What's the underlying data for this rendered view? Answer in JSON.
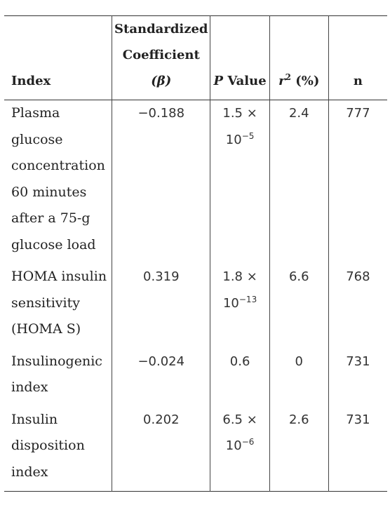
{
  "headers": {
    "index": "Index",
    "coef_line1": "Standardized",
    "coef_line2": "Coefficient",
    "coef_line3": "(β)",
    "pvalue_p": "P",
    "pvalue_rest": " Value",
    "r2_r": "r",
    "r2_sup": "2",
    "r2_rest": " (%)",
    "n": "n"
  },
  "rows": [
    {
      "index_lines": [
        "Plasma",
        "glucose",
        "concentration",
        "60 minutes",
        "after a 75-g",
        "glucose load"
      ],
      "coef": "−0.188",
      "p_base": "1.5 ×",
      "p_exp_base": "10",
      "p_exp": "−5",
      "r2": "2.4",
      "n": "777"
    },
    {
      "index_lines": [
        "HOMA insulin",
        "sensitivity",
        "(HOMA S)"
      ],
      "coef": "0.319",
      "p_base": "1.8 ×",
      "p_exp_base": "10",
      "p_exp": "−13",
      "r2": "6.6",
      "n": "768"
    },
    {
      "index_lines": [
        "Insulinogenic",
        "index"
      ],
      "coef": "−0.024",
      "p_plain": "0.6",
      "r2": "0",
      "n": "731"
    },
    {
      "index_lines": [
        "Insulin",
        "disposition",
        "index"
      ],
      "coef": "0.202",
      "p_base": "6.5 ×",
      "p_exp_base": "10",
      "p_exp": "−6",
      "r2": "2.6",
      "n": "731"
    }
  ]
}
